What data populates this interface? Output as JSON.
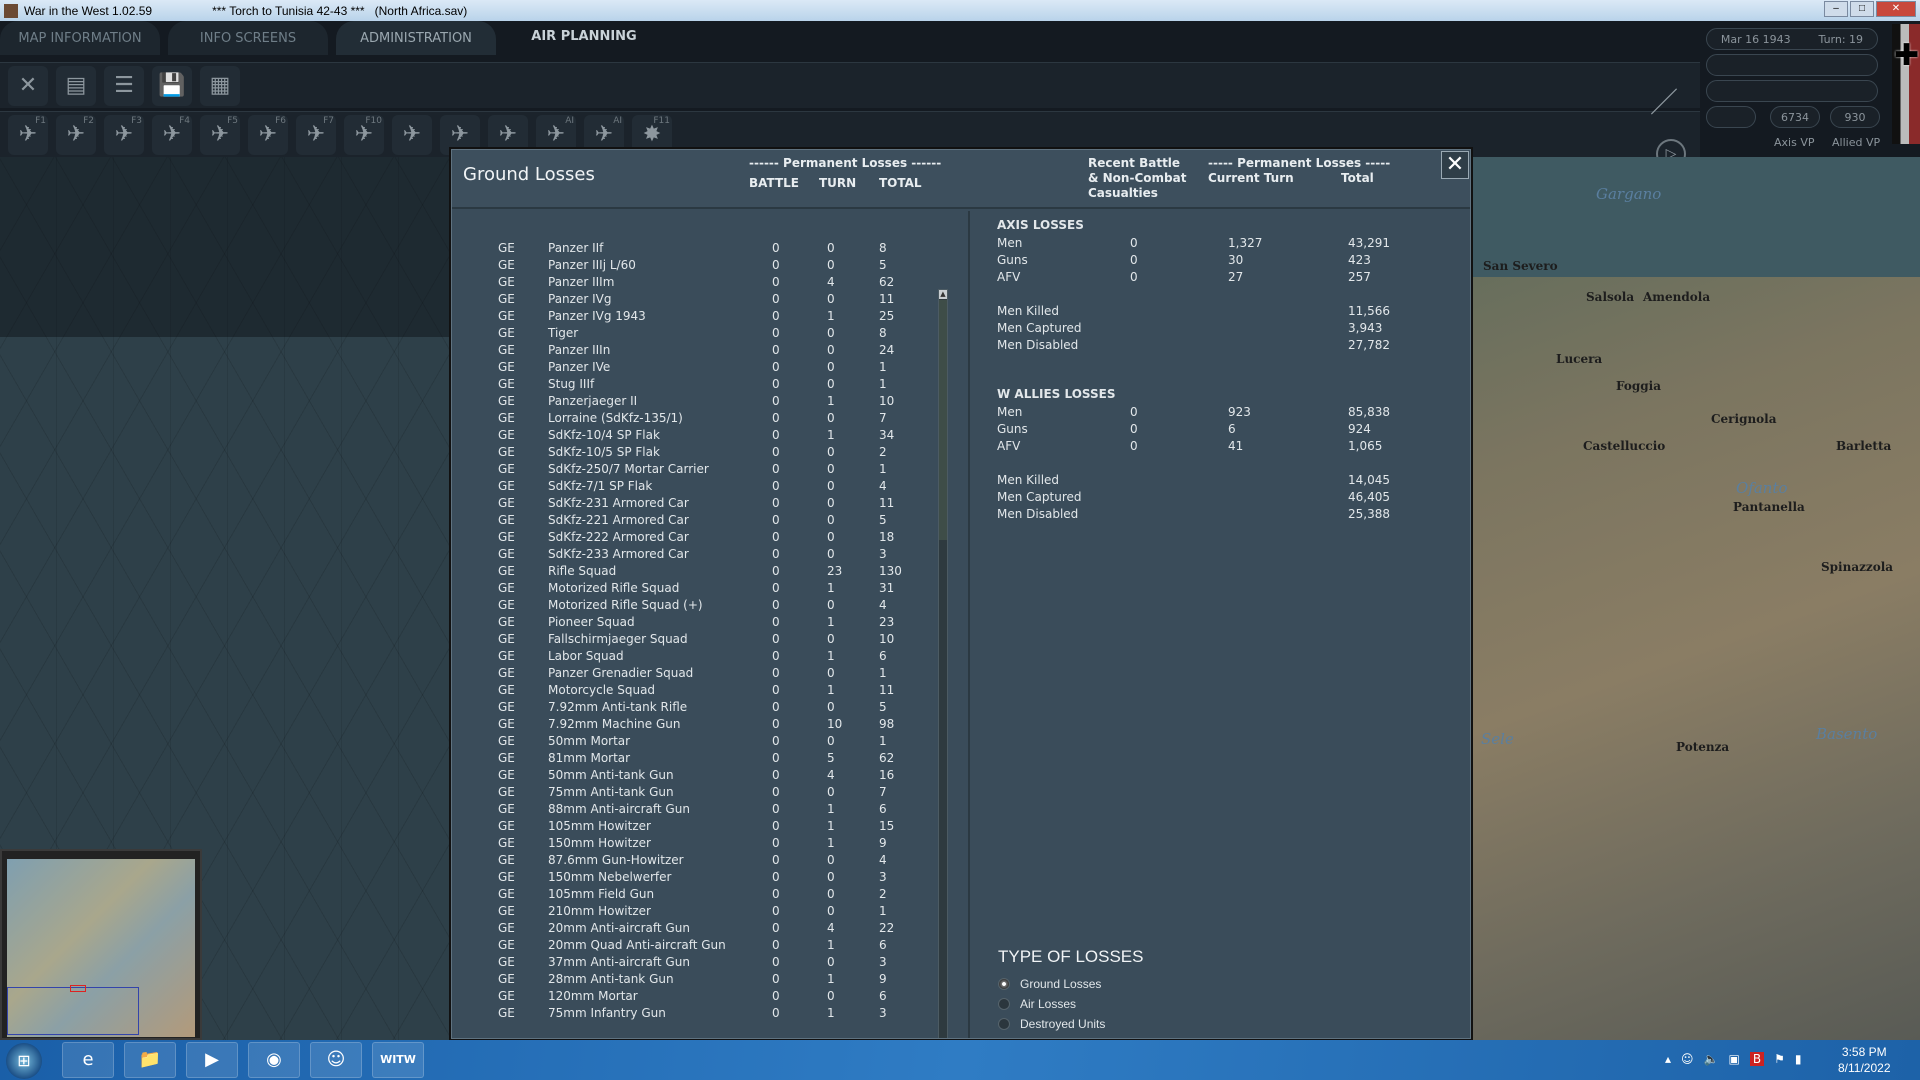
{
  "window": {
    "app_title": "War in the West  1.02.59",
    "scenario": "***   Torch to Tunisia 42-43   ***",
    "file": "(North Africa.sav)"
  },
  "tabs": [
    {
      "label": "MAP INFORMATION"
    },
    {
      "label": "INFO SCREENS"
    },
    {
      "label": "ADMINISTRATION"
    },
    {
      "label": "AIR PLANNING"
    }
  ],
  "toolbar1": [
    {
      "icon": "close-icon",
      "glyph": "✕"
    },
    {
      "icon": "commander-report-icon",
      "glyph": "▤"
    },
    {
      "icon": "list-icon",
      "glyph": "☰"
    },
    {
      "icon": "save-icon",
      "glyph": "💾"
    },
    {
      "icon": "map-grid-icon",
      "glyph": "▦"
    }
  ],
  "toolbar2": [
    {
      "icon": "air-mode-icon",
      "key": "F1",
      "glyph": "✈"
    },
    {
      "icon": "ground-support-icon",
      "key": "F2",
      "glyph": "✈"
    },
    {
      "icon": "bomb-airfield-icon",
      "key": "F3",
      "glyph": "✈"
    },
    {
      "icon": "bomb-city-icon",
      "key": "F4",
      "glyph": "✈"
    },
    {
      "icon": "recon-icon",
      "key": "F5",
      "glyph": "✈"
    },
    {
      "icon": "air-superiority-icon",
      "key": "F6",
      "glyph": "✈"
    },
    {
      "icon": "naval-strike-icon",
      "key": "F7",
      "glyph": "✈"
    },
    {
      "icon": "transfer-icon",
      "key": "F10",
      "glyph": "✈"
    },
    {
      "icon": "interdiction-icon",
      "key": "",
      "glyph": "✈"
    },
    {
      "icon": "air-list-icon",
      "key": "",
      "glyph": "✈"
    },
    {
      "icon": "multi-air-icon",
      "key": "",
      "glyph": "✈"
    },
    {
      "icon": "ai-transfer-icon",
      "key": "AI",
      "glyph": "✈"
    },
    {
      "icon": "ai-air-icon",
      "key": "AI",
      "glyph": "✈"
    },
    {
      "icon": "explosion-icon",
      "key": "F11",
      "glyph": "✸"
    }
  ],
  "status": {
    "date": "Mar 16 1943",
    "turn": "Turn: 19",
    "axis_vp": "6734",
    "allied_vp": "930",
    "axis_vp_label": "Axis VP",
    "allied_vp_label": "Allied VP"
  },
  "map_labels": [
    "Gargano",
    "San Severo",
    "Salsola",
    "Amendola",
    "Lucera",
    "Foggia",
    "Cerignola",
    "Castelluccio",
    "Barletta",
    "Ofanto",
    "Pantanella",
    "Spinazzola",
    "Potenza",
    "Basento",
    "Sele"
  ],
  "dialog": {
    "title": "Ground Losses",
    "left_header": {
      "group": "------ Permanent Losses ------",
      "battle": "BATTLE",
      "turn": "TURN",
      "total": "TOTAL"
    },
    "right_header": {
      "recent": "Recent Battle\n& Non-Combat\nCasualties",
      "group": "----- Permanent Losses -----",
      "current": "Current Turn",
      "total": "Total"
    },
    "rows": [
      [
        "GE",
        "Panzer IIf",
        "0",
        "0",
        "8"
      ],
      [
        "GE",
        "Panzer IIIj L/60",
        "0",
        "0",
        "5"
      ],
      [
        "GE",
        "Panzer IIIm",
        "0",
        "4",
        "62"
      ],
      [
        "GE",
        "Panzer IVg",
        "0",
        "0",
        "11"
      ],
      [
        "GE",
        "Panzer IVg 1943",
        "0",
        "1",
        "25"
      ],
      [
        "GE",
        "Tiger",
        "0",
        "0",
        "8"
      ],
      [
        "GE",
        "Panzer IIIn",
        "0",
        "0",
        "24"
      ],
      [
        "GE",
        "Panzer IVe",
        "0",
        "0",
        "1"
      ],
      [
        "GE",
        "Stug IIIf",
        "0",
        "0",
        "1"
      ],
      [
        "GE",
        "Panzerjaeger II",
        "0",
        "1",
        "10"
      ],
      [
        "GE",
        "Lorraine (SdKfz-135/1)",
        "0",
        "0",
        "7"
      ],
      [
        "GE",
        "SdKfz-10/4 SP Flak",
        "0",
        "1",
        "34"
      ],
      [
        "GE",
        "SdKfz-10/5 SP Flak",
        "0",
        "0",
        "2"
      ],
      [
        "GE",
        "SdKfz-250/7 Mortar Carrier",
        "0",
        "0",
        "1"
      ],
      [
        "GE",
        "SdKfz-7/1 SP Flak",
        "0",
        "0",
        "4"
      ],
      [
        "GE",
        "SdKfz-231 Armored Car",
        "0",
        "0",
        "11"
      ],
      [
        "GE",
        "SdKfz-221 Armored Car",
        "0",
        "0",
        "5"
      ],
      [
        "GE",
        "SdKfz-222 Armored Car",
        "0",
        "0",
        "18"
      ],
      [
        "GE",
        "SdKfz-233 Armored Car",
        "0",
        "0",
        "3"
      ],
      [
        "GE",
        "Rifle Squad",
        "0",
        "23",
        "130"
      ],
      [
        "GE",
        "Motorized Rifle Squad",
        "0",
        "1",
        "31"
      ],
      [
        "GE",
        "Motorized Rifle Squad (+)",
        "0",
        "0",
        "4"
      ],
      [
        "GE",
        "Pioneer Squad",
        "0",
        "1",
        "23"
      ],
      [
        "GE",
        "Fallschirmjaeger Squad",
        "0",
        "0",
        "10"
      ],
      [
        "GE",
        "Labor Squad",
        "0",
        "1",
        "6"
      ],
      [
        "GE",
        "Panzer Grenadier Squad",
        "0",
        "0",
        "1"
      ],
      [
        "GE",
        "Motorcycle Squad",
        "0",
        "1",
        "11"
      ],
      [
        "GE",
        "7.92mm Anti-tank Rifle",
        "0",
        "0",
        "5"
      ],
      [
        "GE",
        "7.92mm Machine Gun",
        "0",
        "10",
        "98"
      ],
      [
        "GE",
        "50mm Mortar",
        "0",
        "0",
        "1"
      ],
      [
        "GE",
        "81mm Mortar",
        "0",
        "5",
        "62"
      ],
      [
        "GE",
        "50mm Anti-tank Gun",
        "0",
        "4",
        "16"
      ],
      [
        "GE",
        "75mm Anti-tank Gun",
        "0",
        "0",
        "7"
      ],
      [
        "GE",
        "88mm Anti-aircraft Gun",
        "0",
        "1",
        "6"
      ],
      [
        "GE",
        "105mm Howitzer",
        "0",
        "1",
        "15"
      ],
      [
        "GE",
        "150mm Howitzer",
        "0",
        "1",
        "9"
      ],
      [
        "GE",
        "87.6mm Gun-Howitzer",
        "0",
        "0",
        "4"
      ],
      [
        "GE",
        "150mm Nebelwerfer",
        "0",
        "0",
        "3"
      ],
      [
        "GE",
        "105mm Field Gun",
        "0",
        "0",
        "2"
      ],
      [
        "GE",
        "210mm Howitzer",
        "0",
        "0",
        "1"
      ],
      [
        "GE",
        "20mm Anti-aircraft Gun",
        "0",
        "4",
        "22"
      ],
      [
        "GE",
        "20mm Quad Anti-aircraft Gun",
        "0",
        "1",
        "6"
      ],
      [
        "GE",
        "37mm Anti-aircraft Gun",
        "0",
        "0",
        "3"
      ],
      [
        "GE",
        "28mm Anti-tank Gun",
        "0",
        "1",
        "9"
      ],
      [
        "GE",
        "120mm Mortar",
        "0",
        "0",
        "6"
      ],
      [
        "GE",
        "75mm Infantry Gun",
        "0",
        "1",
        "3"
      ]
    ],
    "sections": [
      {
        "title": "AXIS LOSSES",
        "lines": [
          [
            "Men",
            "0",
            "1,327",
            "43,291"
          ],
          [
            "Guns",
            "0",
            "30",
            "423"
          ],
          [
            "AFV",
            "0",
            "27",
            "257"
          ]
        ],
        "men": [
          [
            "Men Killed",
            "11,566"
          ],
          [
            "Men Captured",
            "3,943"
          ],
          [
            "Men Disabled",
            "27,782"
          ]
        ]
      },
      {
        "title": "W ALLIES LOSSES",
        "lines": [
          [
            "Men",
            "0",
            "923",
            "85,838"
          ],
          [
            "Guns",
            "0",
            "6",
            "924"
          ],
          [
            "AFV",
            "0",
            "41",
            "1,065"
          ]
        ],
        "men": [
          [
            "Men Killed",
            "14,045"
          ],
          [
            "Men Captured",
            "46,405"
          ],
          [
            "Men Disabled",
            "25,388"
          ]
        ]
      }
    ],
    "type_of_losses": {
      "title": "TYPE OF LOSSES",
      "options": [
        "Ground Losses",
        "Air Losses",
        "Destroyed Units"
      ],
      "selected": "Ground Losses"
    }
  },
  "taskbar": {
    "apps": [
      {
        "icon": "ie-icon",
        "glyph": "e"
      },
      {
        "icon": "explorer-icon",
        "glyph": "📁"
      },
      {
        "icon": "media-player-icon",
        "glyph": "▶"
      },
      {
        "icon": "chrome-icon",
        "glyph": "◉"
      },
      {
        "icon": "discord-icon",
        "glyph": "☺"
      },
      {
        "icon": "witw-icon",
        "glyph": "WITW"
      }
    ],
    "time": "3:58 PM",
    "date": "8/11/2022"
  }
}
